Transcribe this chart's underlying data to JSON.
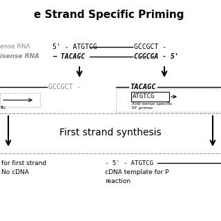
{
  "title": "e Strand Specific Priming",
  "sense_label": "ense RNA",
  "antisense_label": "isense RNA",
  "bg_color": "#ffffff",
  "text_color": "#000000",
  "gray_color": "#888888",
  "dash_color": "#999999"
}
